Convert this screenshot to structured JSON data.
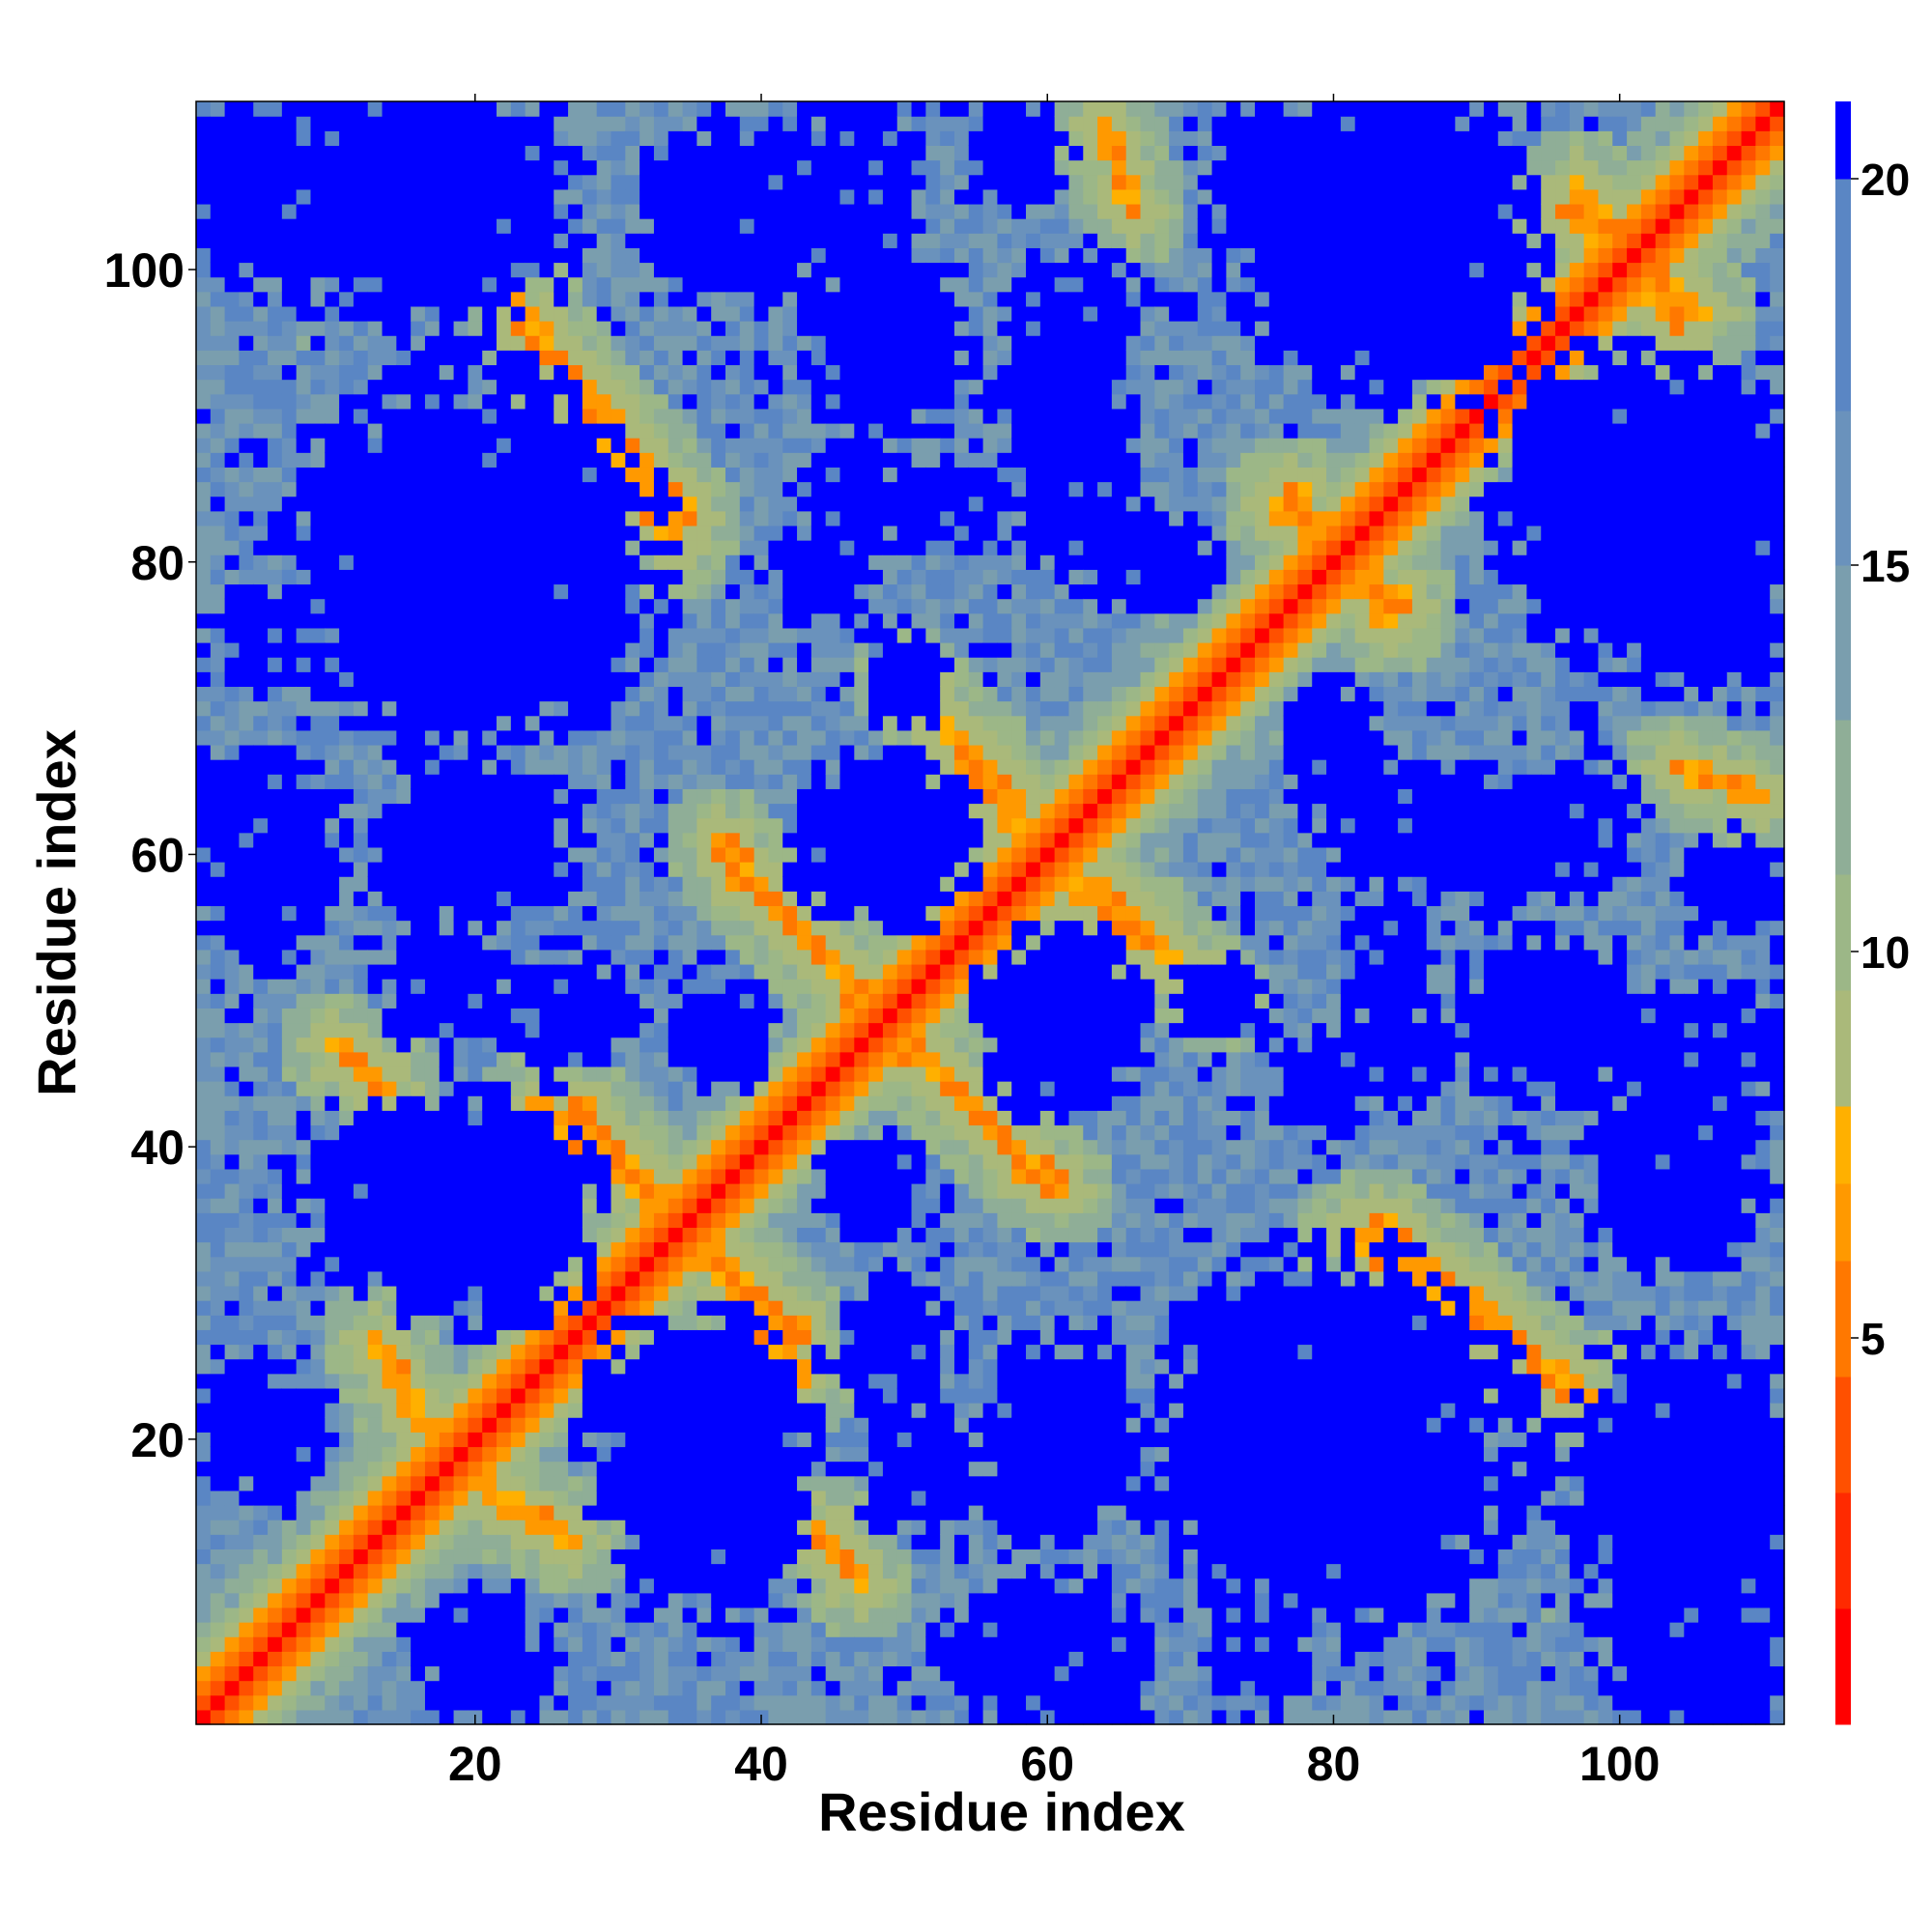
{
  "chart_data": {
    "type": "heatmap",
    "title": "",
    "xlabel": "Residue index",
    "ylabel": "Residue index",
    "n_residues": 111,
    "xlim": [
      0.5,
      111.5
    ],
    "ylim": [
      0.5,
      111.5
    ],
    "x_ticks": [
      20,
      40,
      60,
      80,
      100
    ],
    "y_ticks": [
      20,
      40,
      60,
      80,
      100
    ],
    "colorbar": {
      "ticks": [
        5,
        10,
        15,
        20
      ],
      "range": [
        0,
        21
      ],
      "bands": [
        {
          "max": 1.5,
          "color": "#ff0000"
        },
        {
          "max": 3,
          "color": "#ff2a00"
        },
        {
          "max": 4.5,
          "color": "#ff5000"
        },
        {
          "max": 6,
          "color": "#ff7800"
        },
        {
          "max": 7,
          "color": "#ff9900"
        },
        {
          "max": 8,
          "color": "#ffb000"
        },
        {
          "max": 9.5,
          "color": "#aab97a"
        },
        {
          "max": 11,
          "color": "#9cb787"
        },
        {
          "max": 13,
          "color": "#8fae97"
        },
        {
          "max": 15,
          "color": "#7a9eae"
        },
        {
          "max": 17,
          "color": "#6a92bc"
        },
        {
          "max": 20,
          "color": "#5a86c4"
        },
        {
          "max": 99,
          "color": "#0000ff"
        }
      ]
    },
    "structure": {
      "description_of_values": "pairwise residue distance map (symmetric)",
      "diagonal": {
        "distance_at_offset": [
          0,
          3.8,
          5.5,
          7.0,
          9.0,
          11.0
        ]
      },
      "beta_contacts": [
        {
          "x": [
            23,
            34
          ],
          "y": [
            98,
            81
          ],
          "kind": "antiparallel"
        },
        {
          "x": [
            37,
            48
          ],
          "y": [
            61,
            49
          ],
          "kind": "antiparallel"
        },
        {
          "x": [
            24,
            33
          ],
          "y": [
            43,
            36
          ],
          "kind": "antiparallel"
        },
        {
          "x": [
            50,
            59
          ],
          "y": [
            48,
            38
          ],
          "kind": "antiparallel"
        },
        {
          "x": [
            50,
            58
          ],
          "y": [
            72,
            63
          ],
          "kind": "antiparallel"
        },
        {
          "x": [
            62,
            71
          ],
          "y": [
            58,
            51
          ],
          "kind": "antiparallel"
        },
        {
          "x": [
            83,
            97
          ],
          "y": [
            35,
            23
          ],
          "kind": "antiparallel"
        },
        {
          "x": [
            36,
            43
          ],
          "y": [
            33,
            27
          ],
          "kind": "antiparallel"
        },
        {
          "x": [
            76,
            85
          ],
          "y": [
            84,
            77
          ],
          "kind": "antiparallel"
        },
        {
          "x": [
            13,
            17
          ],
          "y": [
            27,
            20
          ],
          "kind": "contact"
        },
        {
          "x": [
            10,
            14
          ],
          "y": [
            47,
            44
          ],
          "kind": "contact"
        },
        {
          "x": [
            64,
            66
          ],
          "y": [
            110,
            104
          ],
          "kind": "contact"
        },
        {
          "x": [
            97,
            104
          ],
          "y": [
            106,
            96
          ],
          "kind": "contact"
        }
      ],
      "blue_regions": [
        {
          "cx": 10,
          "cy": 106,
          "rx": 10,
          "ry": 7
        },
        {
          "cx": 20,
          "cy": 80,
          "rx": 11,
          "ry": 11
        },
        {
          "cx": 40,
          "cy": 104,
          "rx": 5,
          "ry": 5
        },
        {
          "cx": 50,
          "cy": 95,
          "rx": 4,
          "ry": 4
        },
        {
          "cx": 61,
          "cy": 91,
          "rx": 4,
          "ry": 4
        },
        {
          "cx": 52,
          "cy": 84,
          "rx": 4,
          "ry": 3
        },
        {
          "cx": 75,
          "cy": 106,
          "rx": 3,
          "ry": 5
        },
        {
          "cx": 85,
          "cy": 100,
          "rx": 8,
          "ry": 8
        },
        {
          "cx": 103,
          "cy": 83,
          "rx": 9,
          "ry": 9
        },
        {
          "cx": 20,
          "cy": 61,
          "rx": 6,
          "ry": 5
        },
        {
          "cx": 5,
          "cy": 61,
          "rx": 5,
          "ry": 5
        },
        {
          "cx": 49,
          "cy": 61,
          "rx": 5,
          "ry": 5
        },
        {
          "cx": 61,
          "cy": 48,
          "rx": 5,
          "ry": 5
        },
        {
          "cx": 20,
          "cy": 35,
          "rx": 8,
          "ry": 6
        },
        {
          "cx": 37,
          "cy": 49,
          "rx": 3,
          "ry": 3
        },
        {
          "cx": 26,
          "cy": 49,
          "rx": 4,
          "ry": 4
        },
        {
          "cx": 47,
          "cy": 37,
          "rx": 3,
          "ry": 3
        },
        {
          "cx": 37,
          "cy": 17,
          "rx": 6,
          "ry": 8
        },
        {
          "cx": 51,
          "cy": 18,
          "rx": 4,
          "ry": 4
        },
        {
          "cx": 61,
          "cy": 19,
          "rx": 5,
          "ry": 5
        },
        {
          "cx": 80,
          "cy": 20,
          "rx": 11,
          "ry": 9
        },
        {
          "cx": 104,
          "cy": 18,
          "rx": 7,
          "ry": 8
        },
        {
          "cx": 6,
          "cy": 20,
          "rx": 3,
          "ry": 4
        },
        {
          "cx": 21,
          "cy": 4,
          "rx": 4,
          "ry": 3
        },
        {
          "cx": 57,
          "cy": 6,
          "rx": 4,
          "ry": 3
        },
        {
          "cx": 75,
          "cy": 5,
          "rx": 3,
          "ry": 3
        },
        {
          "cx": 86,
          "cy": 62,
          "rx": 6,
          "ry": 4
        },
        {
          "cx": 97,
          "cy": 62,
          "rx": 4,
          "ry": 4
        },
        {
          "cx": 95,
          "cy": 48,
          "rx": 6,
          "ry": 4
        },
        {
          "cx": 106,
          "cy": 47,
          "rx": 6,
          "ry": 4
        },
        {
          "cx": 85,
          "cy": 46,
          "rx": 4,
          "ry": 3
        },
        {
          "cx": 104,
          "cy": 36,
          "rx": 5,
          "ry": 4
        },
        {
          "cx": 50,
          "cy": 72,
          "rx": 3,
          "ry": 3
        },
        {
          "cx": 67,
          "cy": 80,
          "rx": 4,
          "ry": 3
        },
        {
          "cx": 44,
          "cy": 79,
          "rx": 3,
          "ry": 3
        },
        {
          "cx": 108,
          "cy": 58,
          "rx": 3,
          "ry": 3
        }
      ]
    }
  }
}
